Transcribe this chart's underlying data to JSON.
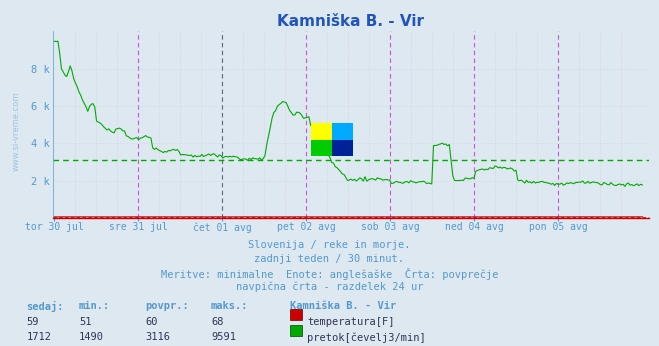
{
  "title": "Kamniška B. - Vir",
  "bg_color": "#dde8f0",
  "plot_bg_color": "#dde8f0",
  "grid_color": "#c8d4e0",
  "title_color": "#2255bb",
  "axis_label_color": "#5599cc",
  "watermark": "www.si-vreme.com",
  "footer_line1": "Slovenija / reke in morje.",
  "footer_line2": "zadnji teden / 30 minut.",
  "footer_line3": "Meritve: minimalne  Enote: anglešaške  Črta: povprečje",
  "footer_line4": "navpična črta - razdelek 24 ur",
  "table_headers": [
    "sedaj:",
    "min.:",
    "povpr.:",
    "maks.:"
  ],
  "table_row1": [
    "59",
    "51",
    "60",
    "68"
  ],
  "table_row2": [
    "1712",
    "1490",
    "3116",
    "9591"
  ],
  "legend_station": "Kamniška B. - Vir",
  "legend_temp": "temperatura[F]",
  "legend_flow": "pretok[čevelj3/min]",
  "temp_color": "#cc0000",
  "flow_color": "#00aa00",
  "avg_temp": 60,
  "avg_flow": 3116,
  "ylim": [
    0,
    10000
  ],
  "yticks": [
    2000,
    4000,
    6000,
    8000
  ],
  "ytick_labels": [
    "2 k",
    "4 k",
    "6 k",
    "8 k"
  ],
  "x_day_labels": [
    "tor 30 jul",
    "sre 31 jul",
    "čet 01 avg",
    "pet 02 avg",
    "sob 03 avg",
    "ned 04 avg",
    "pon 05 avg"
  ],
  "n_points": 336,
  "day_separator_color": "#cc44cc",
  "dark_separator_color": "#555577",
  "sub_separator_color": "#ddaadd"
}
